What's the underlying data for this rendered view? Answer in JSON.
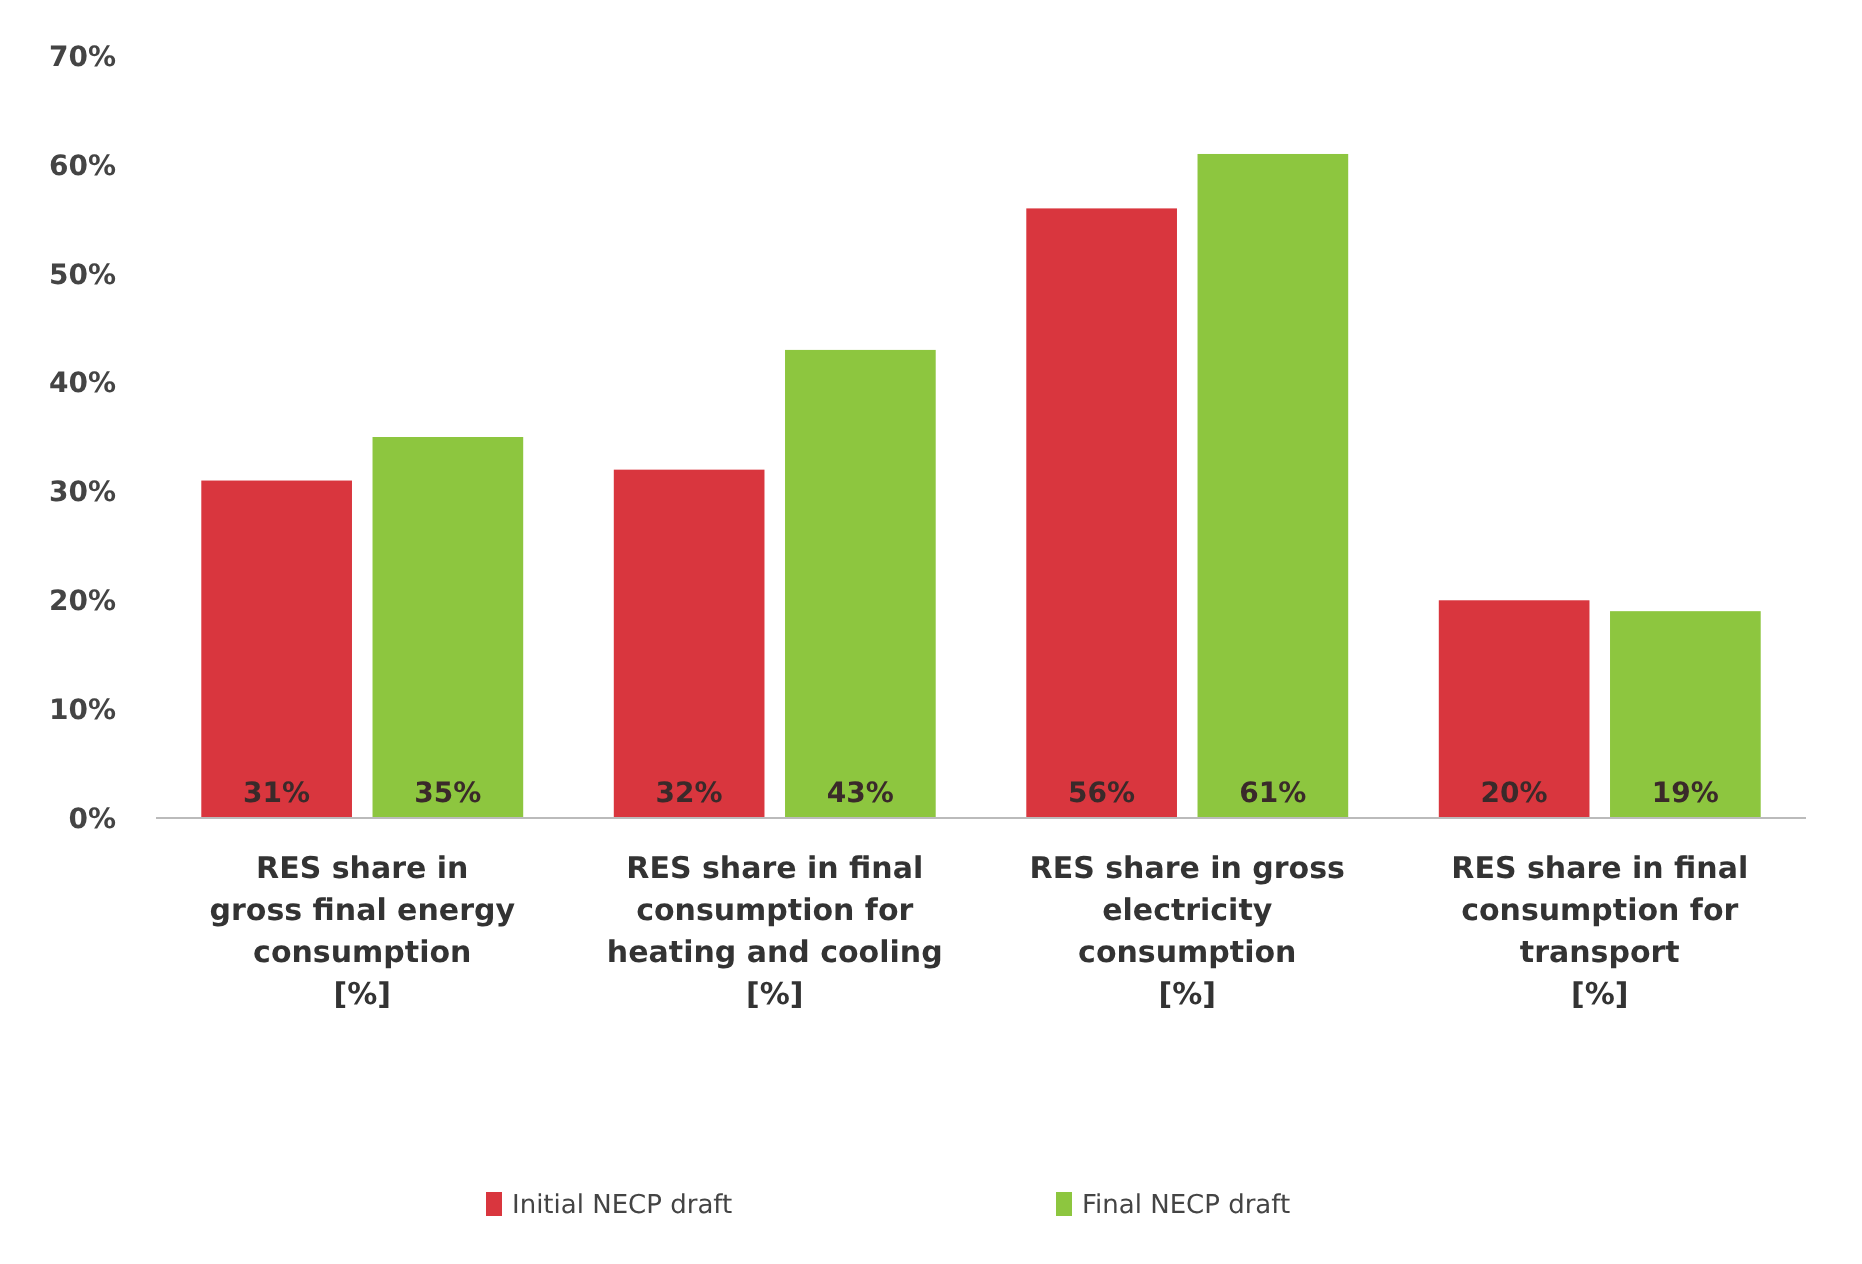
{
  "chart_data": {
    "type": "bar",
    "categories": [
      "RES share in\ngross final energy\nconsumption\n[%]",
      "RES share in final\nconsumption for\nheating and cooling\n[%]",
      "RES share in gross\nelectricity\nconsumption\n[%]",
      "RES share in final\nconsumption for\ntransport\n[%]"
    ],
    "series": [
      {
        "name": "Initial NECP draft",
        "color": "#d9363e",
        "values": [
          31,
          32,
          56,
          20
        ],
        "value_labels": [
          "31%",
          "32%",
          "56%",
          "20%"
        ]
      },
      {
        "name": "Final NECP draft",
        "color": "#8dc63f",
        "values": [
          35,
          43,
          61,
          19
        ],
        "value_labels": [
          "35%",
          "43%",
          "61%",
          "19%"
        ]
      }
    ],
    "ylim": [
      0,
      70
    ],
    "yticks": [
      {
        "value": 0,
        "label": "0%"
      },
      {
        "value": 10,
        "label": "10%"
      },
      {
        "value": 20,
        "label": "20%"
      },
      {
        "value": 30,
        "label": "30%"
      },
      {
        "value": 40,
        "label": "40%"
      },
      {
        "value": 50,
        "label": "50%"
      },
      {
        "value": 60,
        "label": "60%"
      },
      {
        "value": 70,
        "label": "70%"
      }
    ],
    "grid": false,
    "legend": "bottom"
  }
}
